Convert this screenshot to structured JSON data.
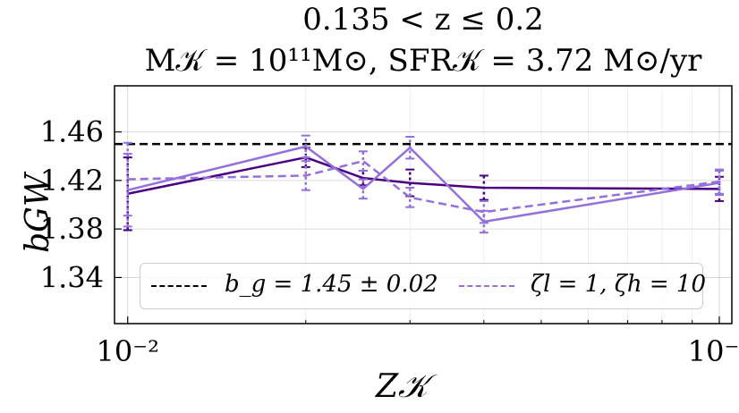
{
  "chart_data": {
    "type": "line",
    "title_line1": "0.135 < z ≤ 0.2",
    "title_line2": "M𝒦 = 10¹¹M⊙, SFR𝒦 = 3.72 M⊙/yr",
    "xlabel": "Z𝒦",
    "ylabel": "bGW",
    "xscale": "log",
    "xlim": [
      0.0095,
      0.105
    ],
    "ylim": [
      1.302,
      1.498
    ],
    "xticks": [
      {
        "value": 0.01,
        "label": "10⁻²"
      },
      {
        "value": 0.1,
        "label": "10⁻¹"
      }
    ],
    "yticks": [
      {
        "value": 1.34,
        "label": "1.34"
      },
      {
        "value": 1.38,
        "label": "1.38"
      },
      {
        "value": 1.42,
        "label": "1.42"
      },
      {
        "value": 1.46,
        "label": "1.46"
      }
    ],
    "grid": true,
    "reference_line": {
      "value": 1.45,
      "label": "b_g = 1.45 ± 0.02",
      "color": "#000000"
    },
    "x": [
      0.01,
      0.02,
      0.025,
      0.03,
      0.04,
      0.1
    ],
    "series": [
      {
        "values": [
          1.409,
          1.439,
          1.422,
          1.418,
          1.414,
          1.413
        ],
        "errors": [
          0.03,
          0.008,
          0.006,
          0.011,
          0.01,
          0.01
        ],
        "color": "#4b0082",
        "dash": "solid"
      },
      {
        "values": [
          1.412,
          1.448,
          1.413,
          1.447,
          1.386,
          1.418
        ],
        "errors": [
          0.03,
          0.009,
          0.008,
          0.009,
          0.009,
          0.01
        ],
        "color": "#9370db",
        "dash": "solid"
      },
      {
        "name": "ζl = 1, ζh = 10",
        "values": [
          1.421,
          1.424,
          1.436,
          1.406,
          1.394,
          1.419
        ],
        "errors": [
          0.03,
          0.012,
          0.008,
          0.008,
          0.009,
          0.01
        ],
        "color": "#9370db",
        "dash": "dashed"
      }
    ],
    "legend": {
      "placement": "lower center",
      "entries": [
        {
          "label": "b_g = 1.45 ± 0.02",
          "color": "#000000",
          "dash": "dashed"
        },
        {
          "label": "ζl = 1, ζh = 10",
          "color": "#9370db",
          "dash": "dashed"
        }
      ]
    }
  }
}
